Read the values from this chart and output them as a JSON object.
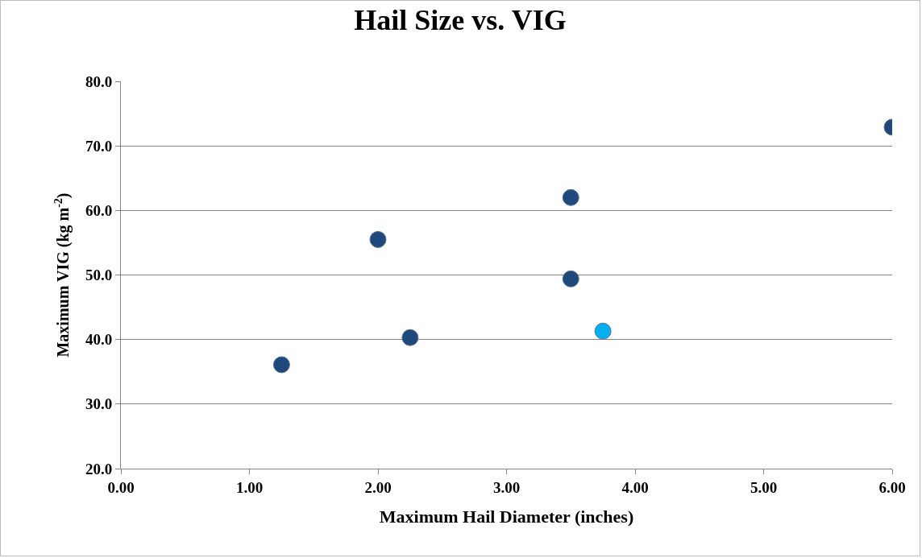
{
  "chart_data": {
    "type": "scatter",
    "title": "Hail Size vs. VIG",
    "xlabel": "Maximum Hail Diameter (inches)",
    "ylabel": "Maximum VIG (kg m$^{-2}$)",
    "x": [
      1.25,
      2.0,
      2.25,
      3.5,
      3.5,
      3.75,
      6.0
    ],
    "values": [
      36.1,
      55.5,
      40.3,
      62.0,
      49.4,
      41.3,
      72.9
    ],
    "colors": [
      "#1f497d",
      "#1f497d",
      "#1f497d",
      "#1f497d",
      "#1f497d",
      "#00b0f0",
      "#1f497d"
    ],
    "xlim": [
      0,
      6
    ],
    "ylim": [
      20,
      80
    ],
    "xticks": [
      {
        "value": 0,
        "label": "0.00"
      },
      {
        "value": 1,
        "label": "1.00"
      },
      {
        "value": 2,
        "label": "2.00"
      },
      {
        "value": 3,
        "label": "3.00"
      },
      {
        "value": 4,
        "label": "4.00"
      },
      {
        "value": 5,
        "label": "5.00"
      },
      {
        "value": 6,
        "label": "6.00"
      }
    ],
    "yticks": [
      {
        "value": 20,
        "label": "20.0"
      },
      {
        "value": 30,
        "label": "30.0"
      },
      {
        "value": 40,
        "label": "40.0"
      },
      {
        "value": 50,
        "label": "50.0"
      },
      {
        "value": 60,
        "label": "60.0"
      },
      {
        "value": 70,
        "label": "70.0"
      },
      {
        "value": 80,
        "label": "80.0"
      }
    ],
    "grid": "y",
    "marker": "circle"
  }
}
